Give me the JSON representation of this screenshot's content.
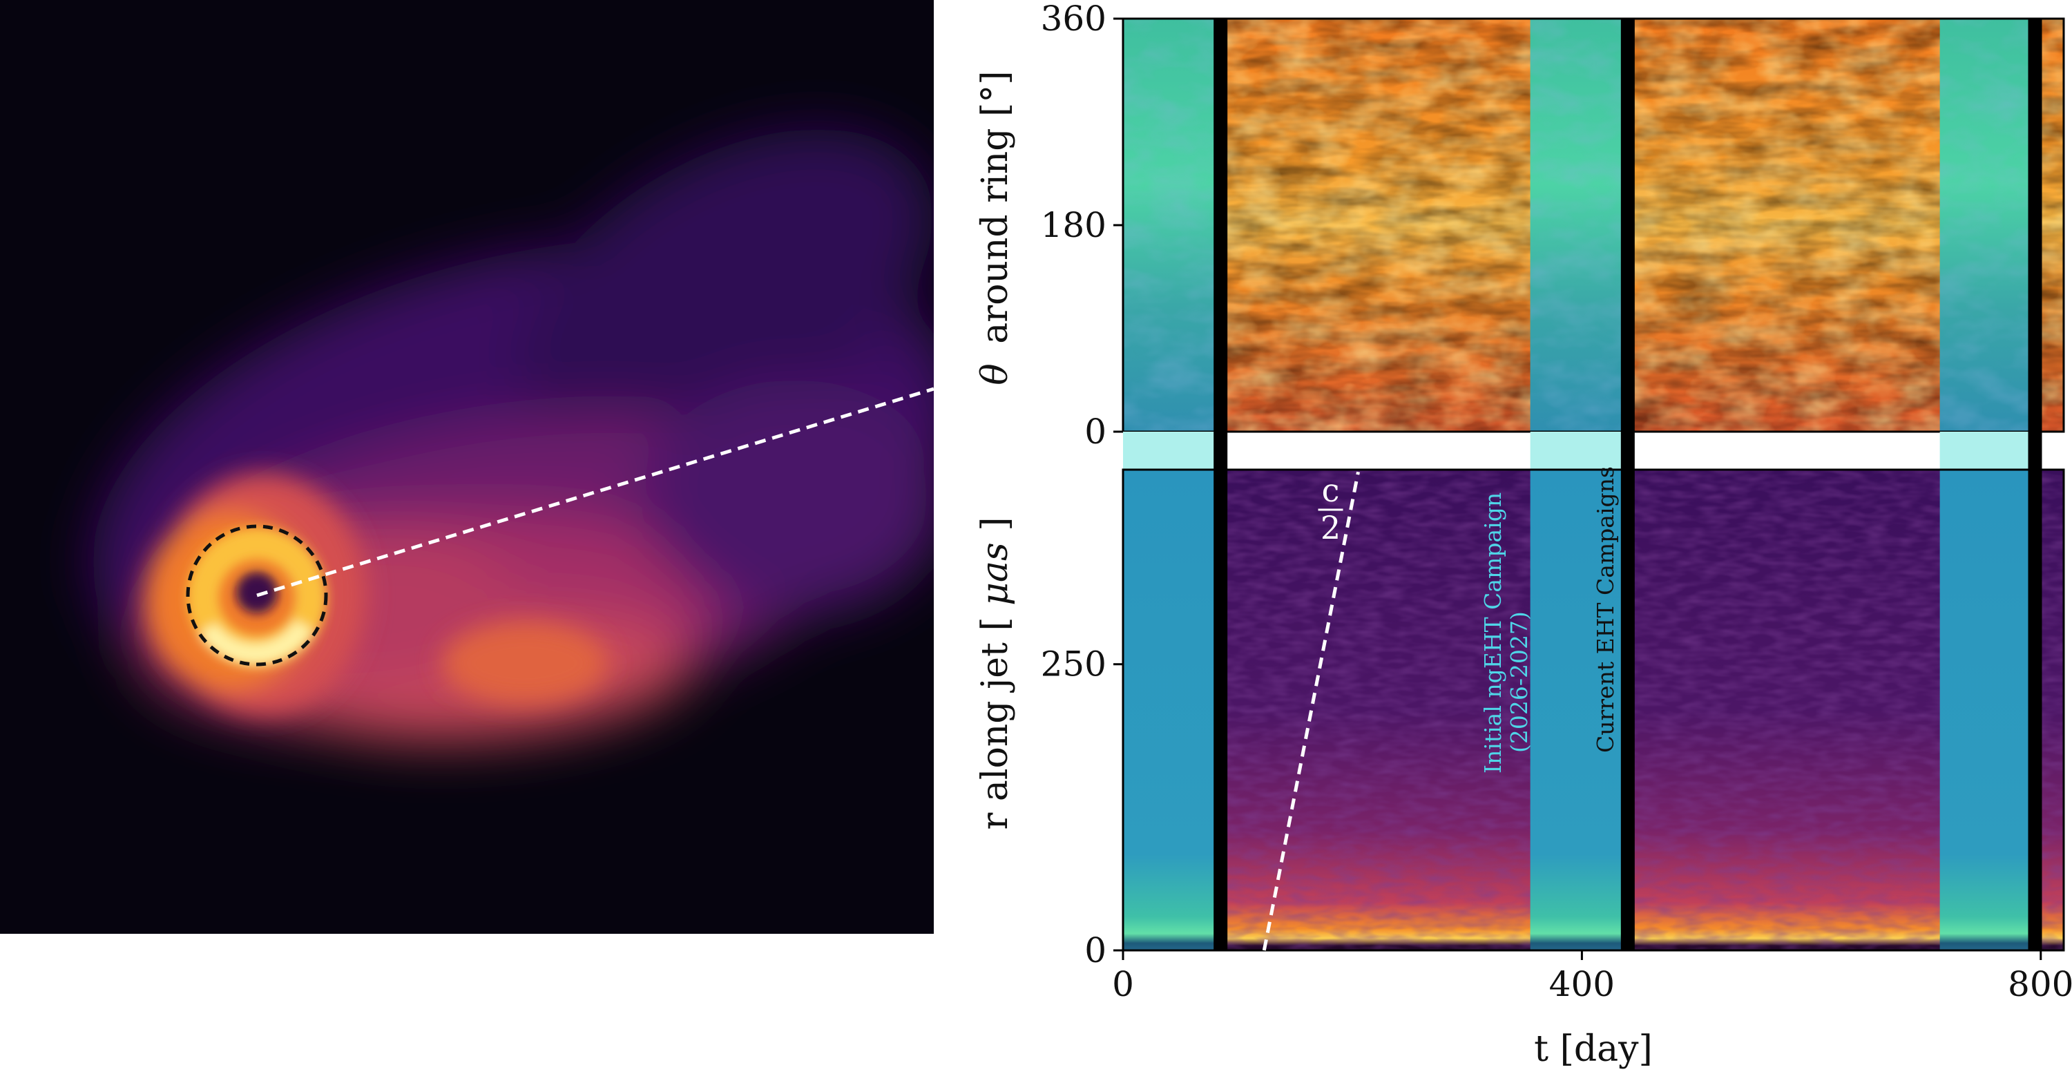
{
  "chart_data": [
    {
      "type": "image",
      "description_label": "",
      "colormap": "inferno",
      "overlays": {
        "ring_circle": "dashed",
        "jet_line": "dashed"
      }
    },
    {
      "type": "heatmap",
      "ylabel_prefix": "θ",
      "ylabel_text": "around ring [°]",
      "yticks": [
        0,
        180,
        360
      ],
      "ylim": [
        0,
        360
      ],
      "xlim": [
        0,
        820
      ],
      "colormap_campaign": "teal",
      "colormap_gap": "inferno"
    },
    {
      "type": "heatmap",
      "ylabel_text": "r along jet [",
      "ylabel_unit": "μas",
      "ylabel_close": "]",
      "yticks": [
        0,
        250
      ],
      "ylim": [
        0,
        420
      ],
      "xlabel": "t [day]",
      "xticks": [
        0,
        400,
        800
      ],
      "xlim": [
        0,
        820
      ],
      "speed_line": {
        "label_num": "c",
        "label_den": "2",
        "t0": 123,
        "t1": 205
      },
      "annotations": {
        "ngeht_line1": "Initial ngEHT Campaign",
        "ngeht_line2": "(2026-2027)",
        "eht": "Current EHT Campaigns"
      }
    }
  ],
  "shared": {
    "black_bars_days": [
      85,
      440,
      795
    ],
    "campaign_bands_days": [
      [
        0,
        82
      ],
      [
        355,
        435
      ],
      [
        712,
        790
      ]
    ],
    "colors": {
      "campaign_ngeht_text": "#4fd6e8",
      "eht_text": "#111111",
      "cyan_band": "#aef0ec"
    }
  }
}
